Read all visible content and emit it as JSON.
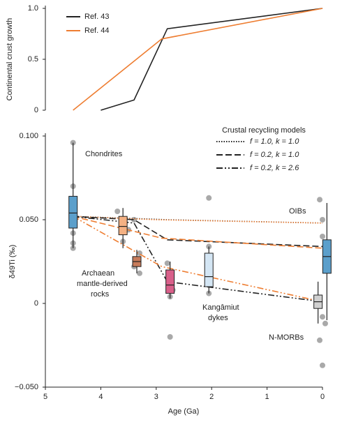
{
  "chart_data": [
    {
      "type": "line",
      "ylabel": "Continental crust growth",
      "xlim": [
        5,
        0
      ],
      "ylim": [
        0,
        1
      ],
      "yticks": [
        0,
        0.5,
        {
          "value": 1,
          "label": "1.0"
        }
      ],
      "series": [
        {
          "name": "Ref. 43",
          "color": "#222222",
          "x": [
            4,
            3.4,
            2.8,
            0
          ],
          "values": [
            0,
            0.1,
            0.8,
            1
          ]
        },
        {
          "name": "Ref. 44",
          "color": "#ee7d31",
          "x": [
            4.5,
            2.9,
            0
          ],
          "values": [
            0,
            0.7,
            1
          ]
        }
      ]
    },
    {
      "type": "box",
      "xlabel": "Age (Ga)",
      "ylabel": "δ49Ti (‰)",
      "xlim": [
        5,
        0
      ],
      "xticks": [
        5,
        4,
        3,
        2,
        1,
        0
      ],
      "ylim": [
        -0.05,
        0.1
      ],
      "yticks": [
        {
          "value": -0.05,
          "label": "−0.050"
        },
        0,
        {
          "value": 0.05,
          "label": "0.050"
        },
        {
          "value": 0.1,
          "label": "0.100"
        }
      ],
      "legend_title": "Crustal recycling models",
      "models": [
        {
          "name": "f = 1.0, k = 1.0",
          "dash": "1.5,2",
          "lines": [
            {
              "color": "#222222",
              "x": [
                4.5,
                2.8,
                0
              ],
              "values": [
                0.052,
                0.05,
                0.048
              ]
            },
            {
              "color": "#ee7d31",
              "x": [
                4.5,
                3,
                0
              ],
              "values": [
                0.052,
                0.05,
                0.048
              ]
            }
          ]
        },
        {
          "name": "f = 0.2, k = 1.0",
          "dash": "9,4",
          "lines": [
            {
              "color": "#222222",
              "x": [
                4.5,
                3.4,
                2.8,
                0
              ],
              "values": [
                0.052,
                0.05,
                0.038,
                0.034
              ]
            },
            {
              "color": "#ee7d31",
              "x": [
                4.5,
                2.9,
                0
              ],
              "values": [
                0.052,
                0.039,
                0.033
              ]
            }
          ]
        },
        {
          "name": "f = 0.2, k = 2.6",
          "dash": "9,3,2,3,2,3",
          "lines": [
            {
              "color": "#222222",
              "x": [
                4.5,
                3.4,
                2.8,
                0
              ],
              "values": [
                0.052,
                0.048,
                0.013,
                0.001
              ]
            },
            {
              "color": "#ee7d31",
              "x": [
                4.5,
                2.9,
                0
              ],
              "values": [
                0.052,
                0.022,
                0.001
              ]
            }
          ]
        }
      ],
      "boxes": [
        {
          "x": 4.5,
          "color": "#5b9fcb",
          "low": 0.033,
          "q1": 0.045,
          "median": 0.054,
          "q3": 0.064,
          "high": 0.096
        },
        {
          "x": 3.6,
          "color": "#f4b183",
          "low": 0.033,
          "q1": 0.041,
          "median": 0.046,
          "q3": 0.052,
          "high": 0.057
        },
        {
          "x": 3.35,
          "color": "#c77b5a",
          "low": 0.018,
          "q1": 0.022,
          "median": 0.025,
          "q3": 0.028,
          "high": 0.032
        },
        {
          "x": 2.75,
          "color": "#d9608a",
          "low": 0.003,
          "q1": 0.006,
          "median": 0.011,
          "q3": 0.02,
          "high": 0.025
        },
        {
          "x": 2.05,
          "color": "#d4e6f4",
          "low": 0.006,
          "q1": 0.01,
          "median": 0.016,
          "q3": 0.03,
          "high": 0.034
        },
        {
          "x": 0.08,
          "color": "#d0d0d0",
          "low": -0.012,
          "q1": -0.003,
          "median": 0.001,
          "q3": 0.005,
          "high": 0.013
        },
        {
          "x": -0.08,
          "color": "#5b9fcb",
          "low": -0.01,
          "q1": 0.018,
          "median": 0.028,
          "q3": 0.038,
          "high": 0.06
        }
      ],
      "points": {
        "x": [
          4.5,
          4.5,
          4.5,
          4.5,
          4.5,
          4.5,
          4.5,
          3.7,
          3.6,
          3.5,
          3.6,
          3.4,
          3.3,
          3.4,
          3.3,
          2.8,
          2.7,
          2.75,
          2.75,
          2.05,
          2.05,
          2.05,
          0.05,
          0.0,
          0.0,
          0.0,
          -0.05,
          0.05,
          0.0,
          -0.05
        ],
        "values": [
          0.096,
          0.07,
          0.06,
          0.05,
          0.042,
          0.036,
          0.033,
          0.055,
          0.048,
          0.044,
          0.037,
          0.05,
          0.03,
          0.022,
          0.018,
          0.024,
          0.008,
          0.004,
          -0.02,
          0.063,
          0.034,
          0.006,
          0.062,
          0.05,
          0.04,
          -0.008,
          -0.012,
          -0.022,
          -0.037,
          0.02
        ]
      },
      "annotations": {
        "chondrites": "Chondrites",
        "oibs": "OIBs",
        "archaean": [
          "Archaean",
          "mantle-derived",
          "rocks"
        ],
        "kangamiut": [
          "Kangâmiut",
          "dykes"
        ],
        "morbs": "N-MORBs"
      }
    }
  ]
}
